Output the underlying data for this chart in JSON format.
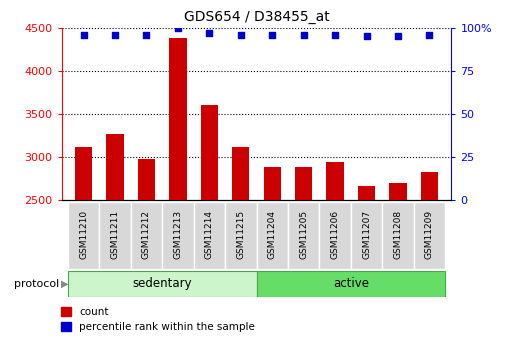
{
  "title": "GDS654 / D38455_at",
  "samples": [
    "GSM11210",
    "GSM11211",
    "GSM11212",
    "GSM11213",
    "GSM11214",
    "GSM11215",
    "GSM11204",
    "GSM11205",
    "GSM11206",
    "GSM11207",
    "GSM11208",
    "GSM11209"
  ],
  "counts": [
    3120,
    3270,
    2980,
    4380,
    3600,
    3120,
    2880,
    2880,
    2940,
    2660,
    2700,
    2830
  ],
  "percentile_ranks": [
    96,
    96,
    96,
    100,
    97,
    96,
    96,
    96,
    96,
    95,
    95,
    96
  ],
  "groups": [
    "sedentary",
    "sedentary",
    "sedentary",
    "sedentary",
    "sedentary",
    "sedentary",
    "active",
    "active",
    "active",
    "active",
    "active",
    "active"
  ],
  "group_colors": {
    "sedentary": "#ccf5cc",
    "active": "#66dd66"
  },
  "bar_color": "#cc0000",
  "dot_color": "#0000cc",
  "ylim_left": [
    2500,
    4500
  ],
  "ylim_right": [
    0,
    100
  ],
  "yticks_left": [
    2500,
    3000,
    3500,
    4000,
    4500
  ],
  "yticks_right": [
    0,
    25,
    50,
    75,
    100
  ],
  "grid_color": "black",
  "tick_bg_color": "#d8d8d8",
  "legend_count_label": "count",
  "legend_pct_label": "percentile rank within the sample",
  "protocol_label": "protocol"
}
